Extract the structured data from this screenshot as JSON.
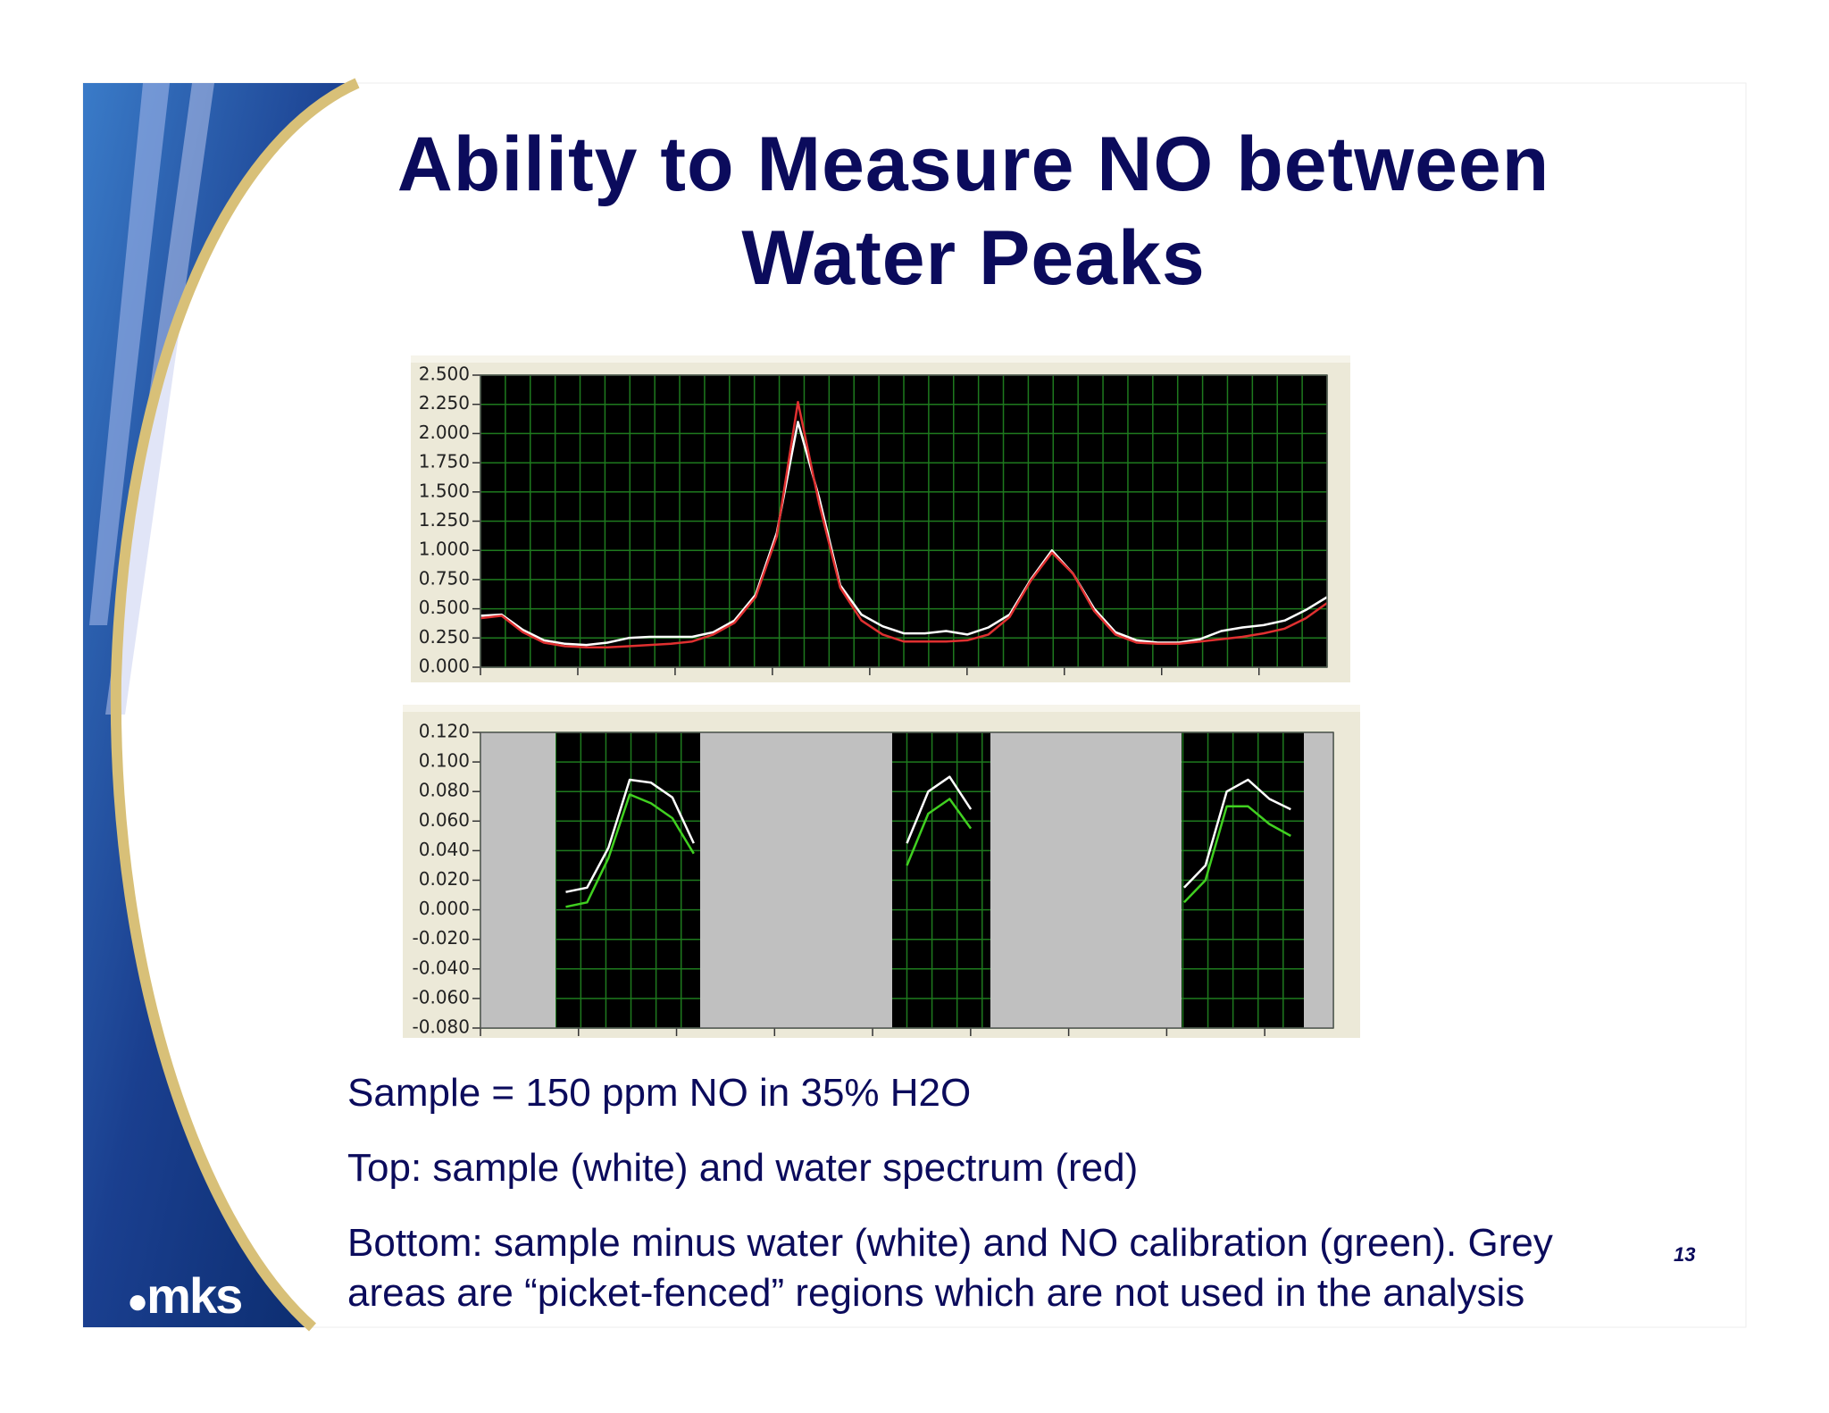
{
  "title": [
    "Ability to Measure NO between",
    "Water Peaks"
  ],
  "chart_data": [
    {
      "type": "line",
      "grid": true,
      "ylim": [
        0,
        2.5
      ],
      "yticks": [
        {
          "value": 0,
          "label": "0.000"
        },
        {
          "value": 0.25,
          "label": "0.250"
        },
        {
          "value": 0.5,
          "label": "0.500"
        },
        {
          "value": 0.75,
          "label": "0.750"
        },
        {
          "value": 1,
          "label": "1.000"
        },
        {
          "value": 1.25,
          "label": "1.250"
        },
        {
          "value": 1.5,
          "label": "1.500"
        },
        {
          "value": 1.75,
          "label": "1.750"
        },
        {
          "value": 2,
          "label": "2.000"
        },
        {
          "value": 2.25,
          "label": "2.250"
        },
        {
          "value": 2.5,
          "label": "2.500"
        }
      ],
      "series": [
        {
          "name": "sample",
          "color": "#ffffff",
          "values": [
            0.44,
            0.45,
            0.32,
            0.23,
            0.2,
            0.19,
            0.21,
            0.25,
            0.26,
            0.26,
            0.26,
            0.3,
            0.4,
            0.62,
            1.15,
            2.1,
            1.45,
            0.7,
            0.45,
            0.35,
            0.29,
            0.29,
            0.31,
            0.28,
            0.34,
            0.45,
            0.75,
            1.0,
            0.8,
            0.5,
            0.3,
            0.23,
            0.21,
            0.21,
            0.24,
            0.31,
            0.34,
            0.36,
            0.4,
            0.49,
            0.6
          ]
        },
        {
          "name": "water spectrum",
          "color": "#e03030",
          "values": [
            0.42,
            0.44,
            0.3,
            0.21,
            0.18,
            0.17,
            0.17,
            0.18,
            0.19,
            0.2,
            0.22,
            0.28,
            0.38,
            0.6,
            1.12,
            2.27,
            1.4,
            0.68,
            0.4,
            0.28,
            0.22,
            0.22,
            0.22,
            0.23,
            0.28,
            0.43,
            0.74,
            0.98,
            0.8,
            0.48,
            0.28,
            0.21,
            0.2,
            0.2,
            0.22,
            0.24,
            0.26,
            0.29,
            0.33,
            0.42,
            0.55
          ]
        }
      ]
    },
    {
      "type": "line",
      "grid": true,
      "ylim": [
        -0.08,
        0.12
      ],
      "yticks": [
        {
          "value": -0.08,
          "label": "-0.080"
        },
        {
          "value": -0.06,
          "label": "-0.060"
        },
        {
          "value": -0.04,
          "label": "-0.040"
        },
        {
          "value": -0.02,
          "label": "-0.020"
        },
        {
          "value": 0,
          "label": "0.000"
        },
        {
          "value": 0.02,
          "label": "0.020"
        },
        {
          "value": 0.04,
          "label": "0.040"
        },
        {
          "value": 0.06,
          "label": "0.060"
        },
        {
          "value": 0.08,
          "label": "0.080"
        },
        {
          "value": 0.1,
          "label": "0.100"
        },
        {
          "value": 0.12,
          "label": "0.120"
        }
      ],
      "series": [
        {
          "name": "sample minus water",
          "color": "#ffffff",
          "values": [
            null,
            null,
            null,
            null,
            0.012,
            0.015,
            0.042,
            0.088,
            0.086,
            0.076,
            0.045,
            null,
            null,
            null,
            null,
            null,
            null,
            null,
            null,
            null,
            0.045,
            0.08,
            0.09,
            0.068,
            null,
            null,
            null,
            null,
            null,
            null,
            null,
            null,
            null,
            0.015,
            0.03,
            0.08,
            0.088,
            0.075,
            0.068,
            null,
            null
          ]
        },
        {
          "name": "NO calibration",
          "color": "#40d020",
          "values": [
            null,
            null,
            null,
            null,
            0.002,
            0.005,
            0.035,
            0.078,
            0.072,
            0.062,
            0.038,
            null,
            null,
            null,
            null,
            null,
            null,
            null,
            null,
            null,
            0.03,
            0.065,
            0.075,
            0.055,
            null,
            null,
            null,
            null,
            null,
            null,
            null,
            null,
            null,
            0.005,
            0.02,
            0.07,
            0.07,
            0.058,
            0.05,
            null,
            null
          ]
        }
      ]
    }
  ],
  "notes": [
    "Sample = 150 ppm NO in 35% H2O",
    "Top: sample (white) and water spectrum (red)",
    "Bottom: sample minus water (white) and NO calibration (green).  Grey areas are “picket-fenced” regions which are not used in the analysis"
  ],
  "page_number": "13",
  "logo": "mks"
}
